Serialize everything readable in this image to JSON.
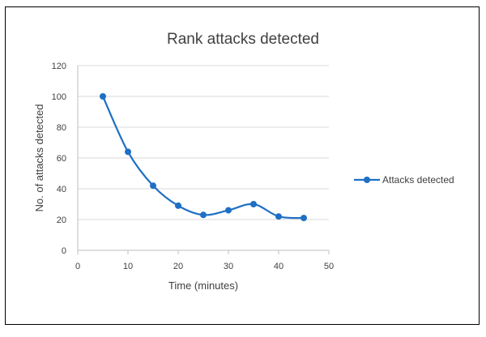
{
  "chart_data": {
    "type": "line",
    "title": "Rank attacks detected",
    "xlabel": "Time (minutes)",
    "ylabel": "No. of attacks detected",
    "xlim": [
      0,
      50
    ],
    "ylim": [
      0,
      120
    ],
    "x_ticks": [
      0,
      10,
      20,
      30,
      40,
      50
    ],
    "y_ticks": [
      0,
      20,
      40,
      60,
      80,
      100,
      120
    ],
    "grid": true,
    "smooth": true,
    "legend_position": "right",
    "series": [
      {
        "name": "Attacks detected",
        "color": "#1f6fc4",
        "x": [
          5,
          10,
          15,
          20,
          25,
          30,
          35,
          40,
          45
        ],
        "y": [
          100,
          64,
          42,
          29,
          23,
          26,
          30,
          22,
          21
        ]
      }
    ]
  }
}
